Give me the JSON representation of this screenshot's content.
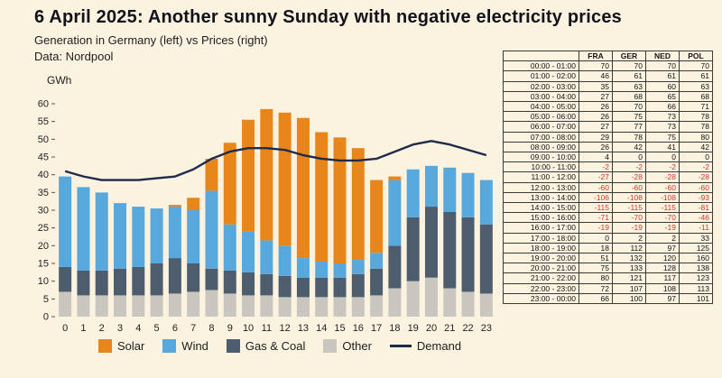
{
  "title": "6 April 2025: Another sunny Sunday with negative electricity prices",
  "subtitle": "Generation in Germany (left) vs Prices (right)",
  "source": "Data: Nordpool",
  "axis_unit": "GWh",
  "colors": {
    "solar": "#E8861C",
    "wind": "#57A9DD",
    "gas_coal": "#4D5D6D",
    "other": "#C9C6C0",
    "demand": "#1E2B4A",
    "negative": "#DC3428",
    "background": "#FBF2E0"
  },
  "legend": [
    {
      "label": "Solar",
      "color_key": "solar",
      "type": "square"
    },
    {
      "label": "Wind",
      "color_key": "wind",
      "type": "square"
    },
    {
      "label": "Gas & Coal",
      "color_key": "gas_coal",
      "type": "square"
    },
    {
      "label": "Other",
      "color_key": "other",
      "type": "square"
    },
    {
      "label": "Demand",
      "color_key": "demand",
      "type": "line"
    }
  ],
  "chart_data": {
    "type": "bar",
    "stacked": true,
    "title": "Generation in Germany",
    "xlabel": "",
    "ylabel": "GWh",
    "ylim": [
      0,
      60
    ],
    "yticks": [
      0,
      5,
      10,
      15,
      20,
      25,
      30,
      35,
      40,
      45,
      50,
      55,
      60
    ],
    "grid": false,
    "legend_position": "bottom",
    "categories": [
      0,
      1,
      2,
      3,
      4,
      5,
      6,
      7,
      8,
      9,
      10,
      11,
      12,
      13,
      14,
      15,
      16,
      17,
      18,
      19,
      20,
      21,
      22,
      23
    ],
    "series": [
      {
        "name": "Other",
        "values": [
          7,
          6,
          6,
          6,
          6,
          6,
          6.5,
          7,
          7.5,
          6.5,
          6,
          6,
          5.5,
          5.5,
          5.5,
          5.5,
          5.5,
          6,
          8,
          10,
          11,
          8,
          7,
          6.5
        ]
      },
      {
        "name": "Gas & Coal",
        "values": [
          7,
          7,
          7,
          7.5,
          8,
          9,
          10,
          8,
          6,
          6.5,
          6.5,
          6,
          6,
          5.5,
          5.5,
          5.5,
          6.5,
          7.5,
          12,
          18,
          20,
          21.5,
          21,
          19.5
        ]
      },
      {
        "name": "Wind",
        "values": [
          25.5,
          23.5,
          22,
          18.5,
          17,
          15.5,
          14.5,
          15,
          22,
          13,
          11.5,
          9.5,
          8.5,
          5.5,
          4.5,
          4,
          4,
          4.5,
          18.5,
          13.5,
          11.5,
          12.5,
          12.5,
          12.5
        ]
      },
      {
        "name": "Solar",
        "values": [
          0,
          0,
          0,
          0,
          0,
          0,
          0.5,
          3.5,
          9,
          23,
          31.5,
          37,
          37.5,
          39.5,
          36.5,
          35.5,
          31.5,
          20.5,
          1,
          0,
          0,
          0,
          0,
          0
        ]
      }
    ],
    "line_series": {
      "name": "Demand",
      "values": [
        41,
        39.5,
        38.5,
        38.5,
        38.5,
        39,
        39.5,
        41.5,
        44.5,
        46.5,
        47.5,
        47.5,
        47,
        45.5,
        44.5,
        44,
        44,
        44.5,
        46.5,
        48.5,
        49.5,
        48.5,
        47,
        45.5
      ]
    }
  },
  "price_table": {
    "columns": [
      "FRA",
      "GER",
      "NED",
      "POL"
    ],
    "rows": [
      {
        "time": "00:00 - 01:00",
        "values": [
          70,
          70,
          70,
          70
        ]
      },
      {
        "time": "01:00 - 02:00",
        "values": [
          46,
          61,
          61,
          61
        ]
      },
      {
        "time": "02:00 - 03:00",
        "values": [
          35,
          63,
          60,
          63
        ]
      },
      {
        "time": "03:00 - 04:00",
        "values": [
          27,
          68,
          65,
          68
        ]
      },
      {
        "time": "04:00 - 05:00",
        "values": [
          26,
          70,
          66,
          71
        ]
      },
      {
        "time": "05:00 - 06:00",
        "values": [
          26,
          75,
          73,
          78
        ]
      },
      {
        "time": "06:00 - 07:00",
        "values": [
          27,
          77,
          73,
          78
        ]
      },
      {
        "time": "07:00 - 08:00",
        "values": [
          29,
          78,
          75,
          80
        ]
      },
      {
        "time": "08:00 - 09:00",
        "values": [
          26,
          42,
          41,
          42
        ]
      },
      {
        "time": "09:00 - 10:00",
        "values": [
          4,
          0,
          0,
          0
        ]
      },
      {
        "time": "10:00 - 11:00",
        "values": [
          -2,
          -2,
          -2,
          -2
        ]
      },
      {
        "time": "11:00 - 12:00",
        "values": [
          -27,
          -28,
          -28,
          -28
        ]
      },
      {
        "time": "12:00 - 13:00",
        "values": [
          -60,
          -60,
          -60,
          -60
        ]
      },
      {
        "time": "13:00 - 14:00",
        "values": [
          -106,
          -108,
          -108,
          -93
        ]
      },
      {
        "time": "14:00 - 15:00",
        "values": [
          -115,
          -115,
          -115,
          -81
        ]
      },
      {
        "time": "15:00 - 16:00",
        "values": [
          -71,
          -70,
          -70,
          -46
        ]
      },
      {
        "time": "16:00 - 17:00",
        "values": [
          -19,
          -19,
          -19,
          -11
        ]
      },
      {
        "time": "17:00 - 18:00",
        "values": [
          0,
          2,
          2,
          33
        ]
      },
      {
        "time": "18:00 - 19:00",
        "values": [
          18,
          112,
          97,
          125
        ]
      },
      {
        "time": "19:00 - 20:00",
        "values": [
          51,
          132,
          120,
          160
        ]
      },
      {
        "time": "20:00 - 21:00",
        "values": [
          75,
          133,
          128,
          138
        ]
      },
      {
        "time": "21:00 - 22:00",
        "values": [
          80,
          121,
          117,
          123
        ]
      },
      {
        "time": "22:00 - 23:00",
        "values": [
          72,
          107,
          108,
          113
        ]
      },
      {
        "time": "23:00 - 00:00",
        "values": [
          66,
          100,
          97,
          101
        ]
      }
    ]
  }
}
